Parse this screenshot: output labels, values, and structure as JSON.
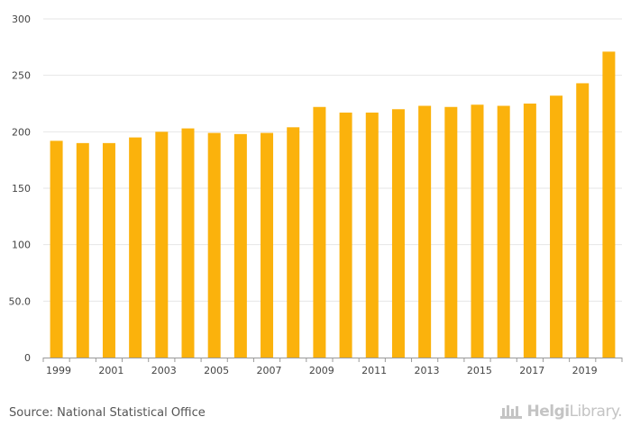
{
  "chart_data": {
    "type": "bar",
    "title": "",
    "xlabel": "",
    "ylabel": "",
    "ylim": [
      0,
      300
    ],
    "yticks": [
      0,
      50,
      100,
      150,
      200,
      250,
      300
    ],
    "ytick_labels": [
      "0",
      "50.0",
      "100",
      "150",
      "200",
      "250",
      "300"
    ],
    "categories": [
      "1999",
      "2000",
      "2001",
      "2002",
      "2003",
      "2004",
      "2005",
      "2006",
      "2007",
      "2008",
      "2009",
      "2010",
      "2011",
      "2012",
      "2013",
      "2014",
      "2015",
      "2016",
      "2017",
      "2018",
      "2019",
      "2020"
    ],
    "xtick_labels": [
      "1999",
      "",
      "2001",
      "",
      "2003",
      "",
      "2005",
      "",
      "2007",
      "",
      "2009",
      "",
      "2011",
      "",
      "2013",
      "",
      "2015",
      "",
      "2017",
      "",
      "2019",
      ""
    ],
    "values": [
      192,
      190,
      190,
      195,
      200,
      203,
      199,
      198,
      199,
      204,
      222,
      217,
      217,
      220,
      223,
      222,
      224,
      223,
      225,
      232,
      243,
      271
    ],
    "bar_color": "#FBB20C",
    "grid": true,
    "grid_color": "#e6e6e6",
    "axis_color": "#999999"
  },
  "footer": {
    "source": "Source: National Statistical Office",
    "brand_name": "Helgi",
    "brand_suffix": "Library."
  }
}
